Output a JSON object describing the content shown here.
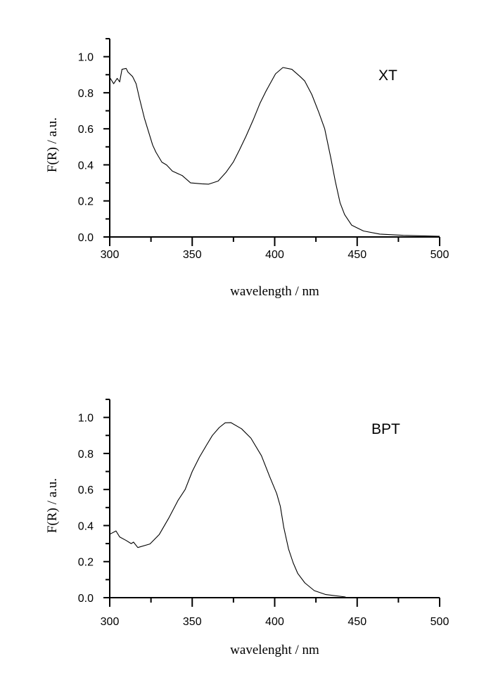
{
  "chart_data": [
    {
      "type": "line",
      "title": "",
      "annotation": "XT",
      "xlabel": "wavelength / nm",
      "ylabel": "F(R) / a.u.",
      "xlim": [
        300,
        500
      ],
      "ylim": [
        0,
        1.1
      ],
      "xticks": [
        "300",
        "350",
        "400",
        "450",
        "500"
      ],
      "yticks": [
        "0.0",
        "0.2",
        "0.4",
        "0.6",
        "0.8",
        "1.0"
      ],
      "grid": false,
      "color": "#000000",
      "series": [
        {
          "name": "XT",
          "x": [
            300,
            302.4,
            304.5,
            306,
            307.4,
            310,
            311,
            313.8,
            316,
            318,
            321,
            323,
            326,
            328,
            331.6,
            334.4,
            338,
            344,
            349,
            355.7,
            360,
            365.7,
            370.6,
            374.9,
            378.5,
            382.7,
            387,
            391,
            394.8,
            400.5,
            405,
            410.4,
            415.4,
            418.2,
            422.5,
            426.8,
            430.3,
            434,
            436.7,
            439.6,
            442.4,
            446.7,
            453.8,
            463.7,
            478,
            500
          ],
          "y": [
            0.885,
            0.85,
            0.88,
            0.86,
            0.93,
            0.935,
            0.915,
            0.89,
            0.85,
            0.77,
            0.66,
            0.6,
            0.51,
            0.47,
            0.415,
            0.4,
            0.365,
            0.34,
            0.3,
            0.295,
            0.293,
            0.31,
            0.36,
            0.415,
            0.48,
            0.56,
            0.65,
            0.74,
            0.81,
            0.905,
            0.94,
            0.93,
            0.89,
            0.865,
            0.79,
            0.69,
            0.6,
            0.44,
            0.31,
            0.19,
            0.124,
            0.065,
            0.033,
            0.016,
            0.009,
            0.004
          ]
        }
      ]
    },
    {
      "type": "line",
      "title": "",
      "annotation": "BPT",
      "xlabel": "wavelenght / nm",
      "ylabel": "F(R) / a.u.",
      "xlim": [
        300,
        500
      ],
      "ylim": [
        0,
        1.1
      ],
      "xticks": [
        "300",
        "350",
        "400",
        "450",
        "500"
      ],
      "yticks": [
        "0.0",
        "0.2",
        "0.4",
        "0.6",
        "0.8",
        "1.0"
      ],
      "grid": false,
      "color": "#000000",
      "series": [
        {
          "name": "BPT",
          "x": [
            300,
            303.8,
            306,
            310,
            313,
            314.4,
            317,
            324.4,
            330,
            335.7,
            341.4,
            345.7,
            350,
            354.4,
            358.6,
            362.2,
            366.4,
            370,
            373.5,
            379.9,
            385.6,
            392,
            397,
            401.2,
            403.4,
            405.5,
            408.4,
            411.2,
            414,
            418.3,
            424,
            431,
            443
          ],
          "y": [
            0.352,
            0.37,
            0.337,
            0.317,
            0.3,
            0.308,
            0.278,
            0.298,
            0.35,
            0.44,
            0.54,
            0.6,
            0.7,
            0.78,
            0.845,
            0.9,
            0.944,
            0.97,
            0.971,
            0.937,
            0.885,
            0.787,
            0.67,
            0.578,
            0.507,
            0.39,
            0.27,
            0.193,
            0.134,
            0.082,
            0.039,
            0.017,
            0.004
          ]
        }
      ]
    }
  ]
}
